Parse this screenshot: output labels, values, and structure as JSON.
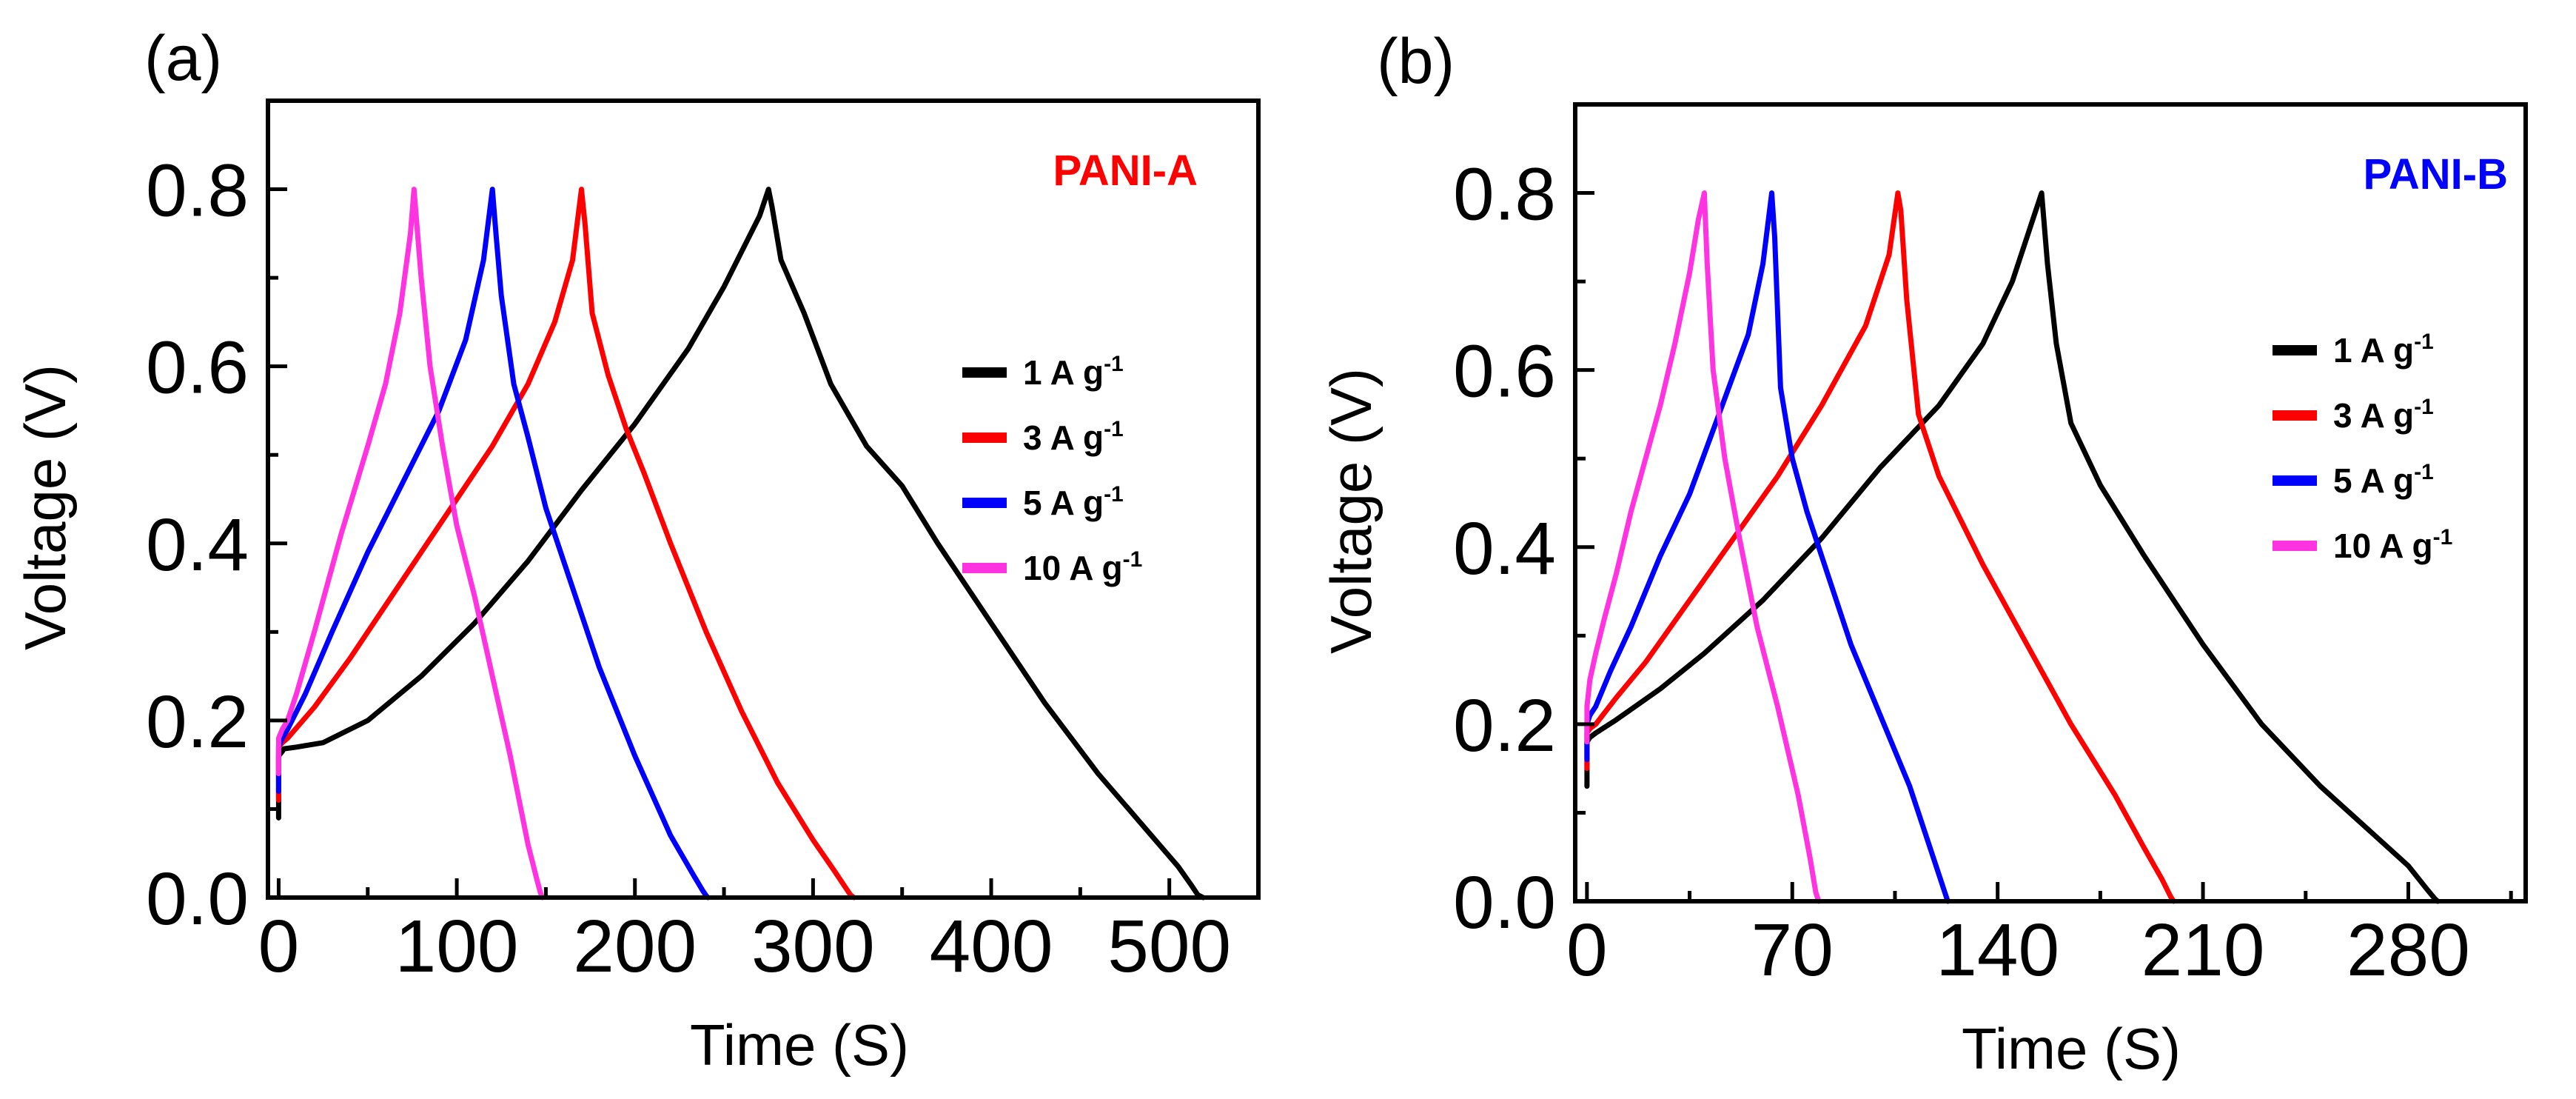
{
  "chart_data": [
    {
      "type": "line",
      "panel_label": "(a)",
      "title": "PANI-A",
      "title_color": "#ff0000",
      "xlabel": "Time (S)",
      "ylabel": "Voltage (V)",
      "xlim": [
        -6,
        550
      ],
      "ylim": [
        0,
        0.9
      ],
      "xticks": [
        0,
        100,
        200,
        300,
        400,
        500
      ],
      "xtick_labels": [
        "0",
        "100",
        "200",
        "300",
        "400",
        "500"
      ],
      "yticks": [
        0.0,
        0.2,
        0.4,
        0.6,
        0.8
      ],
      "ytick_labels": [
        "0.0",
        "0.2",
        "0.4",
        "0.6",
        "0.8"
      ],
      "legend": "right",
      "series": [
        {
          "name": "1 A g",
          "sup": "-1",
          "color": "#000000",
          "x": [
            0,
            0,
            2,
            3,
            10,
            25,
            50,
            80,
            110,
            140,
            170,
            200,
            230,
            250,
            270,
            275,
            277,
            282,
            295,
            310,
            330,
            350,
            370,
            400,
            430,
            460,
            490,
            505,
            512,
            516,
            519
          ],
          "y": [
            0.09,
            0.16,
            0.165,
            0.168,
            0.17,
            0.175,
            0.2,
            0.25,
            0.31,
            0.38,
            0.46,
            0.535,
            0.62,
            0.69,
            0.77,
            0.8,
            0.78,
            0.72,
            0.66,
            0.58,
            0.51,
            0.465,
            0.4,
            0.31,
            0.22,
            0.14,
            0.07,
            0.035,
            0.015,
            0.003,
            0.0
          ]
        },
        {
          "name": "3 A g",
          "sup": "-1",
          "color": "#ff0000",
          "x": [
            0,
            0,
            2,
            5,
            20,
            40,
            60,
            80,
            100,
            120,
            140,
            155,
            165,
            170,
            172,
            176,
            185,
            195,
            205,
            220,
            240,
            260,
            280,
            300,
            312,
            318,
            321,
            323
          ],
          "y": [
            0.11,
            0.17,
            0.175,
            0.18,
            0.215,
            0.27,
            0.33,
            0.39,
            0.45,
            0.51,
            0.58,
            0.65,
            0.72,
            0.8,
            0.76,
            0.66,
            0.59,
            0.53,
            0.48,
            0.4,
            0.3,
            0.21,
            0.13,
            0.065,
            0.03,
            0.012,
            0.003,
            0.0
          ]
        },
        {
          "name": "5 A g",
          "sup": "-1",
          "color": "#0000ff",
          "x": [
            0,
            0,
            2,
            5,
            15,
            30,
            50,
            70,
            90,
            105,
            115,
            120,
            122,
            125,
            132,
            140,
            150,
            165,
            180,
            200,
            220,
            233,
            238,
            240,
            241
          ],
          "y": [
            0.12,
            0.17,
            0.18,
            0.19,
            0.23,
            0.3,
            0.39,
            0.47,
            0.55,
            0.63,
            0.72,
            0.8,
            0.75,
            0.68,
            0.58,
            0.52,
            0.44,
            0.35,
            0.26,
            0.16,
            0.07,
            0.025,
            0.008,
            0.002,
            0.0
          ]
        },
        {
          "name": "10 A g",
          "sup": "-1",
          "color": "#ff33e0",
          "x": [
            0,
            0,
            2,
            5,
            10,
            20,
            35,
            50,
            60,
            68,
            74,
            76,
            78,
            80,
            85,
            92,
            100,
            110,
            120,
            130,
            140,
            145,
            147,
            148
          ],
          "y": [
            0.14,
            0.18,
            0.19,
            0.2,
            0.23,
            0.3,
            0.41,
            0.51,
            0.58,
            0.66,
            0.75,
            0.8,
            0.75,
            0.7,
            0.6,
            0.51,
            0.42,
            0.34,
            0.25,
            0.16,
            0.06,
            0.02,
            0.005,
            0.0
          ]
        }
      ]
    },
    {
      "type": "line",
      "panel_label": "(b)",
      "title": "PANI-B",
      "title_color": "#0000ff",
      "xlabel": "Time (S)",
      "ylabel": "Voltage (V)",
      "xlim": [
        -4,
        320
      ],
      "ylim": [
        0,
        0.9
      ],
      "xticks": [
        0,
        70,
        140,
        210,
        280
      ],
      "xtick_labels": [
        "0",
        "70",
        "140",
        "210",
        "280"
      ],
      "yticks": [
        0.0,
        0.2,
        0.4,
        0.6,
        0.8
      ],
      "ytick_labels": [
        "0.0",
        "0.2",
        "0.4",
        "0.6",
        "0.8"
      ],
      "legend": "right",
      "series": [
        {
          "name": "1 A g",
          "sup": "-1",
          "color": "#000000",
          "x": [
            0,
            0,
            1,
            3,
            10,
            25,
            40,
            60,
            80,
            100,
            120,
            135,
            145,
            152,
            155,
            157,
            160,
            165,
            175,
            190,
            210,
            230,
            250,
            270,
            280,
            286,
            289,
            290
          ],
          "y": [
            0.13,
            0.18,
            0.185,
            0.19,
            0.205,
            0.24,
            0.28,
            0.34,
            0.41,
            0.49,
            0.56,
            0.63,
            0.7,
            0.77,
            0.8,
            0.72,
            0.63,
            0.54,
            0.47,
            0.39,
            0.29,
            0.2,
            0.13,
            0.07,
            0.04,
            0.015,
            0.003,
            0.0
          ]
        },
        {
          "name": "3 A g",
          "sup": "-1",
          "color": "#ff0000",
          "x": [
            0,
            0,
            1,
            3,
            10,
            20,
            35,
            50,
            65,
            80,
            95,
            103,
            106,
            107,
            109,
            113,
            120,
            135,
            150,
            165,
            180,
            190,
            196,
            199,
            200
          ],
          "y": [
            0.15,
            0.19,
            0.195,
            0.2,
            0.23,
            0.27,
            0.34,
            0.41,
            0.48,
            0.56,
            0.65,
            0.73,
            0.8,
            0.78,
            0.68,
            0.55,
            0.48,
            0.38,
            0.29,
            0.2,
            0.12,
            0.06,
            0.025,
            0.005,
            0.0
          ]
        },
        {
          "name": "5 A g",
          "sup": "-1",
          "color": "#0000ff",
          "x": [
            0,
            0,
            1,
            3,
            8,
            15,
            25,
            35,
            45,
            55,
            60,
            63,
            64,
            66,
            70,
            75,
            82,
            90,
            100,
            110,
            118,
            122,
            123
          ],
          "y": [
            0.16,
            0.2,
            0.21,
            0.22,
            0.26,
            0.31,
            0.39,
            0.46,
            0.55,
            0.64,
            0.72,
            0.8,
            0.75,
            0.58,
            0.5,
            0.44,
            0.37,
            0.29,
            0.21,
            0.13,
            0.05,
            0.01,
            0.0
          ]
        },
        {
          "name": "10 A g",
          "sup": "-1",
          "color": "#ff33e0",
          "x": [
            0,
            0,
            1,
            3,
            6,
            10,
            15,
            20,
            25,
            30,
            35,
            38,
            40,
            41,
            43,
            47,
            52,
            58,
            65,
            72,
            76,
            78,
            79
          ],
          "y": [
            0.18,
            0.22,
            0.25,
            0.28,
            0.32,
            0.37,
            0.44,
            0.5,
            0.56,
            0.63,
            0.71,
            0.77,
            0.8,
            0.72,
            0.6,
            0.5,
            0.41,
            0.31,
            0.22,
            0.12,
            0.05,
            0.01,
            0.0
          ]
        }
      ]
    }
  ]
}
